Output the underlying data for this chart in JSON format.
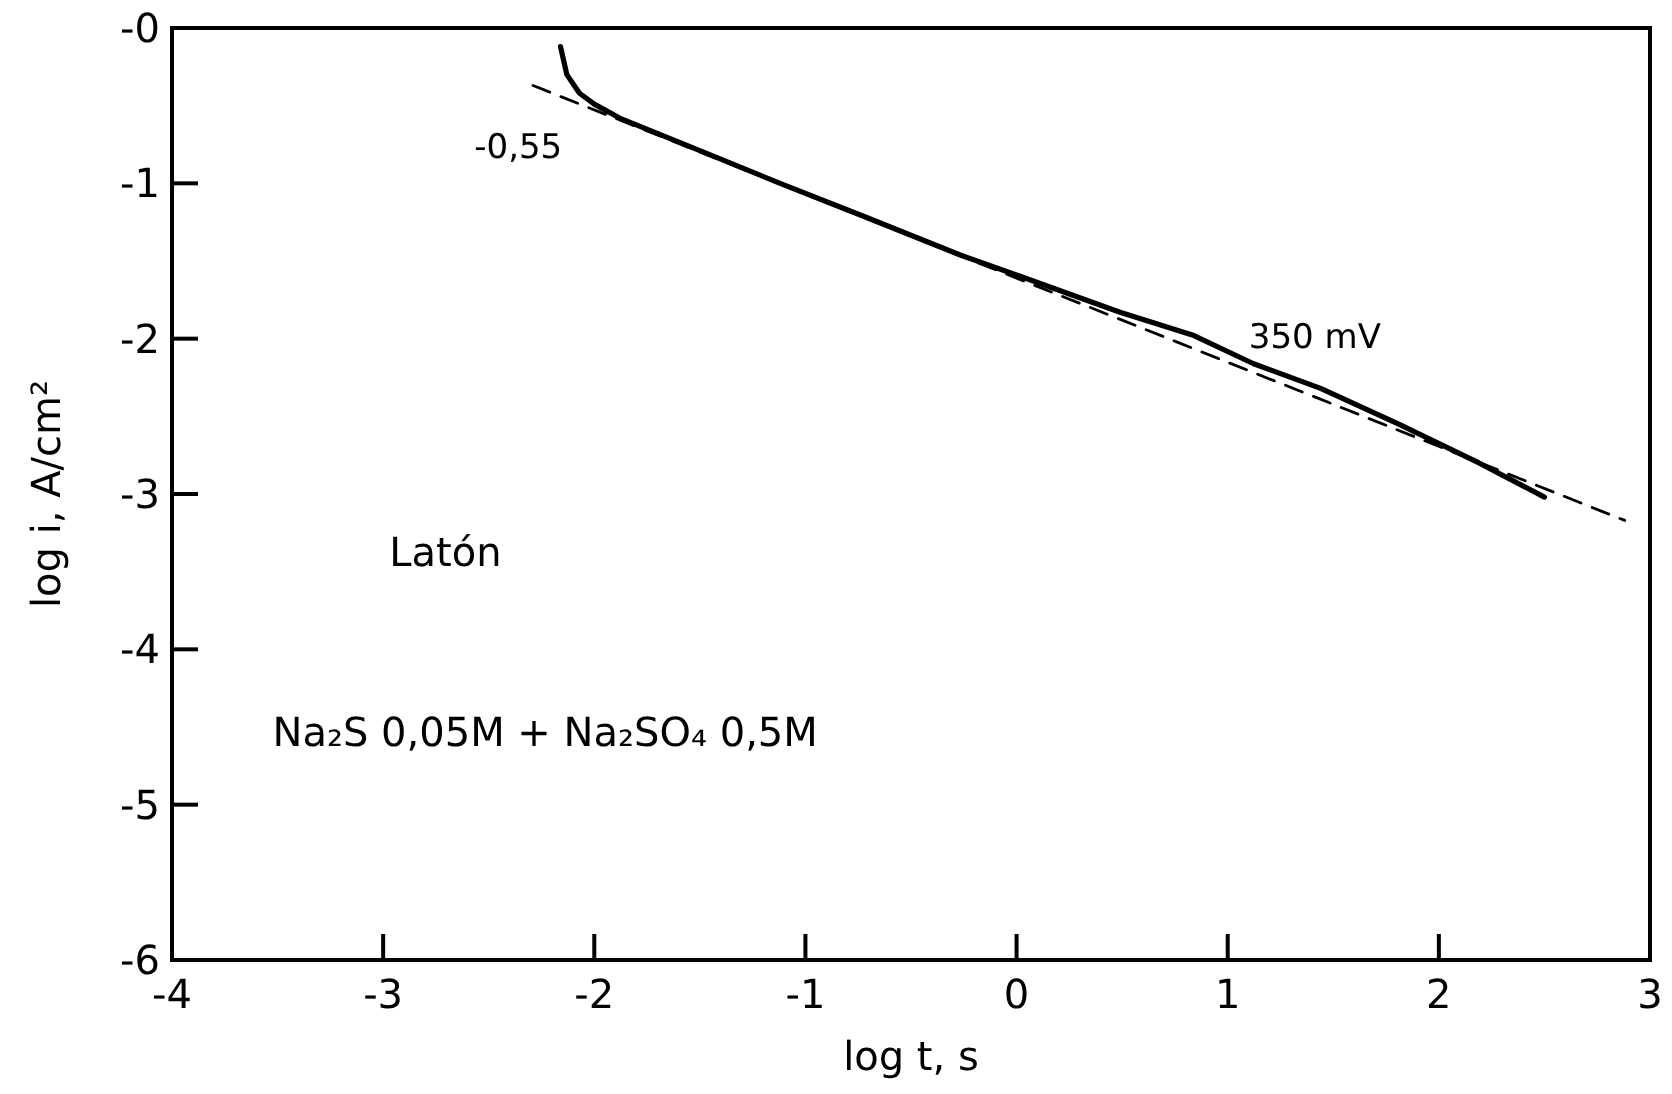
{
  "chart_data": {
    "type": "line",
    "xlabel": "log t, s",
    "ylabel": "log i, A/cm²",
    "xlim": [
      -4,
      3
    ],
    "xticks": [
      -4,
      -3,
      -2,
      -1,
      0,
      1,
      2,
      3
    ],
    "ylim": [
      -6,
      0
    ],
    "yticks": [
      {
        "value": 0,
        "label": "-0"
      },
      -1,
      -2,
      -3,
      -4,
      -5,
      -6
    ],
    "series": [
      {
        "color": "#000000",
        "line_style": "solid",
        "x": [
          -2.16,
          -2.13,
          -2.07,
          -2.0,
          -1.88,
          -1.5,
          -1.12,
          -0.71,
          -0.27,
          0.02,
          0.49,
          0.84,
          1.12,
          1.44,
          1.81,
          2.19,
          2.5
        ],
        "values": [
          -0.12,
          -0.3,
          -0.42,
          -0.49,
          -0.58,
          -0.79,
          -1.0,
          -1.22,
          -1.46,
          -1.6,
          -1.83,
          -1.98,
          -2.16,
          -2.32,
          -2.55,
          -2.8,
          -3.02
        ]
      },
      {
        "color": "#000000",
        "line_style": "dashed",
        "x": [
          -2.29,
          2.88
        ],
        "values": [
          -0.37,
          -3.17
        ]
      }
    ],
    "annotations": [
      {
        "text": "-0,55",
        "x": -2.0,
        "y": -0.5
      },
      {
        "text": "350 mV",
        "x": 1.1,
        "y": -2.14
      },
      "Latón",
      "Na₂S 0,05M + Na₂SO₄ 0,5M"
    ]
  }
}
